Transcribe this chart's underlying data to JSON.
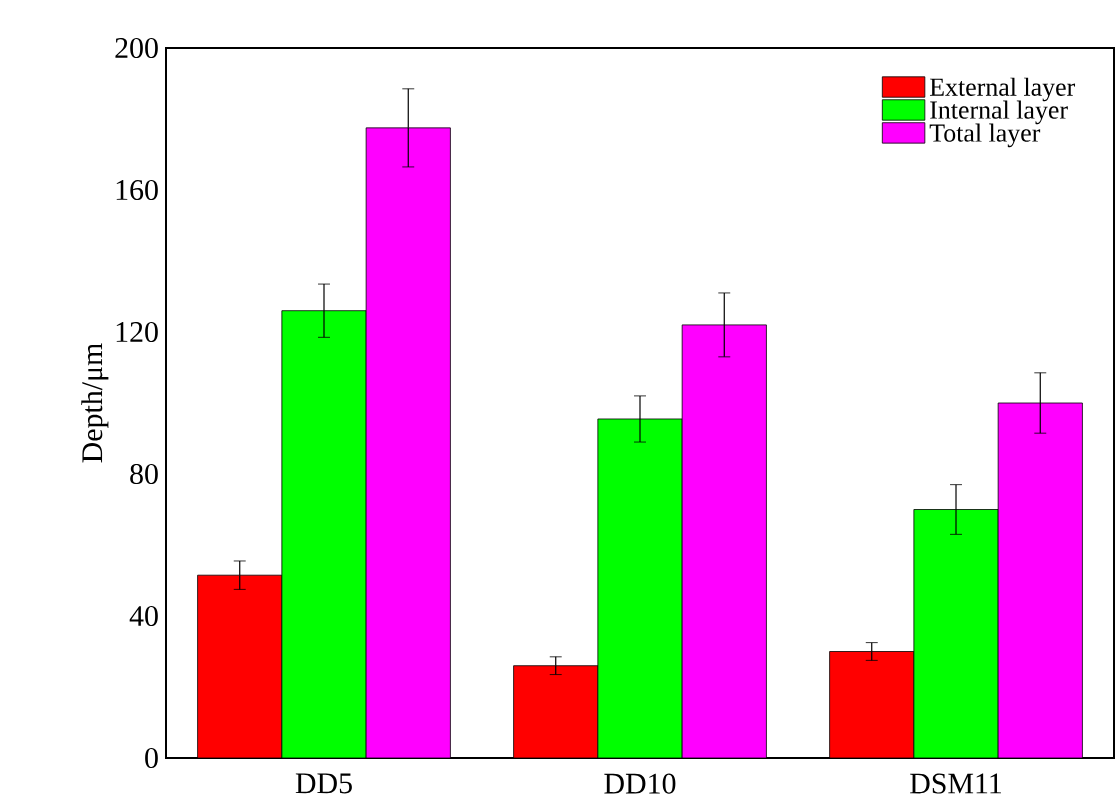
{
  "chart_data": {
    "type": "bar",
    "ylabel": "Depth/μm",
    "categories": [
      "DD5",
      "DD10",
      "DSM11"
    ],
    "series": [
      {
        "name": "External layer",
        "color": "#ff0000",
        "values": [
          51.5,
          26,
          30
        ],
        "errors": [
          4,
          2.5,
          2.5
        ]
      },
      {
        "name": "Internal layer",
        "color": "#00ff00",
        "values": [
          126,
          95.5,
          70
        ],
        "errors": [
          7.5,
          6.5,
          7
        ]
      },
      {
        "name": "Total layer",
        "color": "#ff00ff",
        "values": [
          177.5,
          122,
          100
        ],
        "errors": [
          11,
          9,
          8.5
        ]
      }
    ],
    "ylim": [
      0,
      200
    ],
    "yticks": [
      0,
      40,
      80,
      120,
      160,
      200
    ],
    "legend": "top right",
    "grid": false
  }
}
